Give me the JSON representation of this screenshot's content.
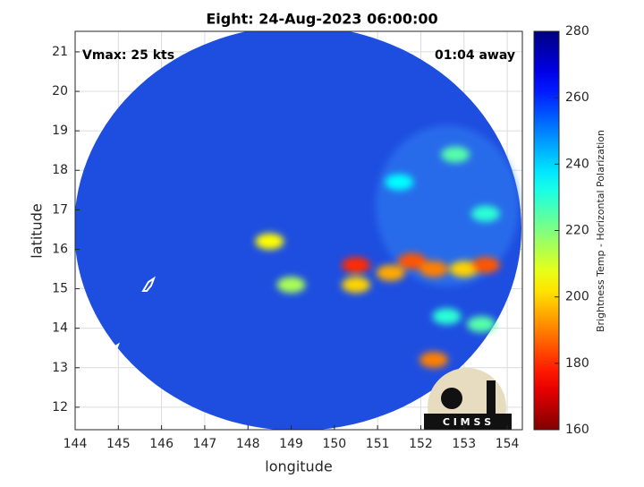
{
  "chart_data": {
    "type": "heatmap",
    "title": "Eight: 24-Aug-2023 06:00:00",
    "annotations": [
      "Vmax: 25 kts",
      "01:04 away"
    ],
    "x_label": "longitude",
    "y_label": "latitude",
    "xlim": [
      144,
      154.35
    ],
    "ylim": [
      11.43,
      21.52
    ],
    "xticks": [
      144,
      145,
      146,
      147,
      148,
      149,
      150,
      151,
      152,
      153,
      154
    ],
    "yticks": [
      12,
      13,
      14,
      15,
      16,
      17,
      18,
      19,
      20,
      21
    ],
    "grid": true,
    "x": [
      150.5,
      150.5,
      151.3,
      151.8,
      152.3,
      153.0,
      153.5,
      148.5,
      149.0,
      152.3,
      152.8,
      153.5,
      151.5,
      152.6,
      153.4
    ],
    "y": [
      15.6,
      15.1,
      15.4,
      15.7,
      15.5,
      15.5,
      15.6,
      16.2,
      15.1,
      13.2,
      18.4,
      16.9,
      17.7,
      14.3,
      14.1
    ],
    "values": [
      180,
      200,
      195,
      185,
      190,
      200,
      185,
      205,
      215,
      190,
      225,
      230,
      235,
      230,
      225
    ],
    "colorbar": {
      "label": "Brightness Temp - Horizontal Polarization",
      "lim": [
        160,
        280
      ],
      "ticks": [
        160,
        180,
        200,
        220,
        240,
        260,
        280
      ],
      "colormap": "jet_r"
    },
    "logo": "C I M S S"
  }
}
